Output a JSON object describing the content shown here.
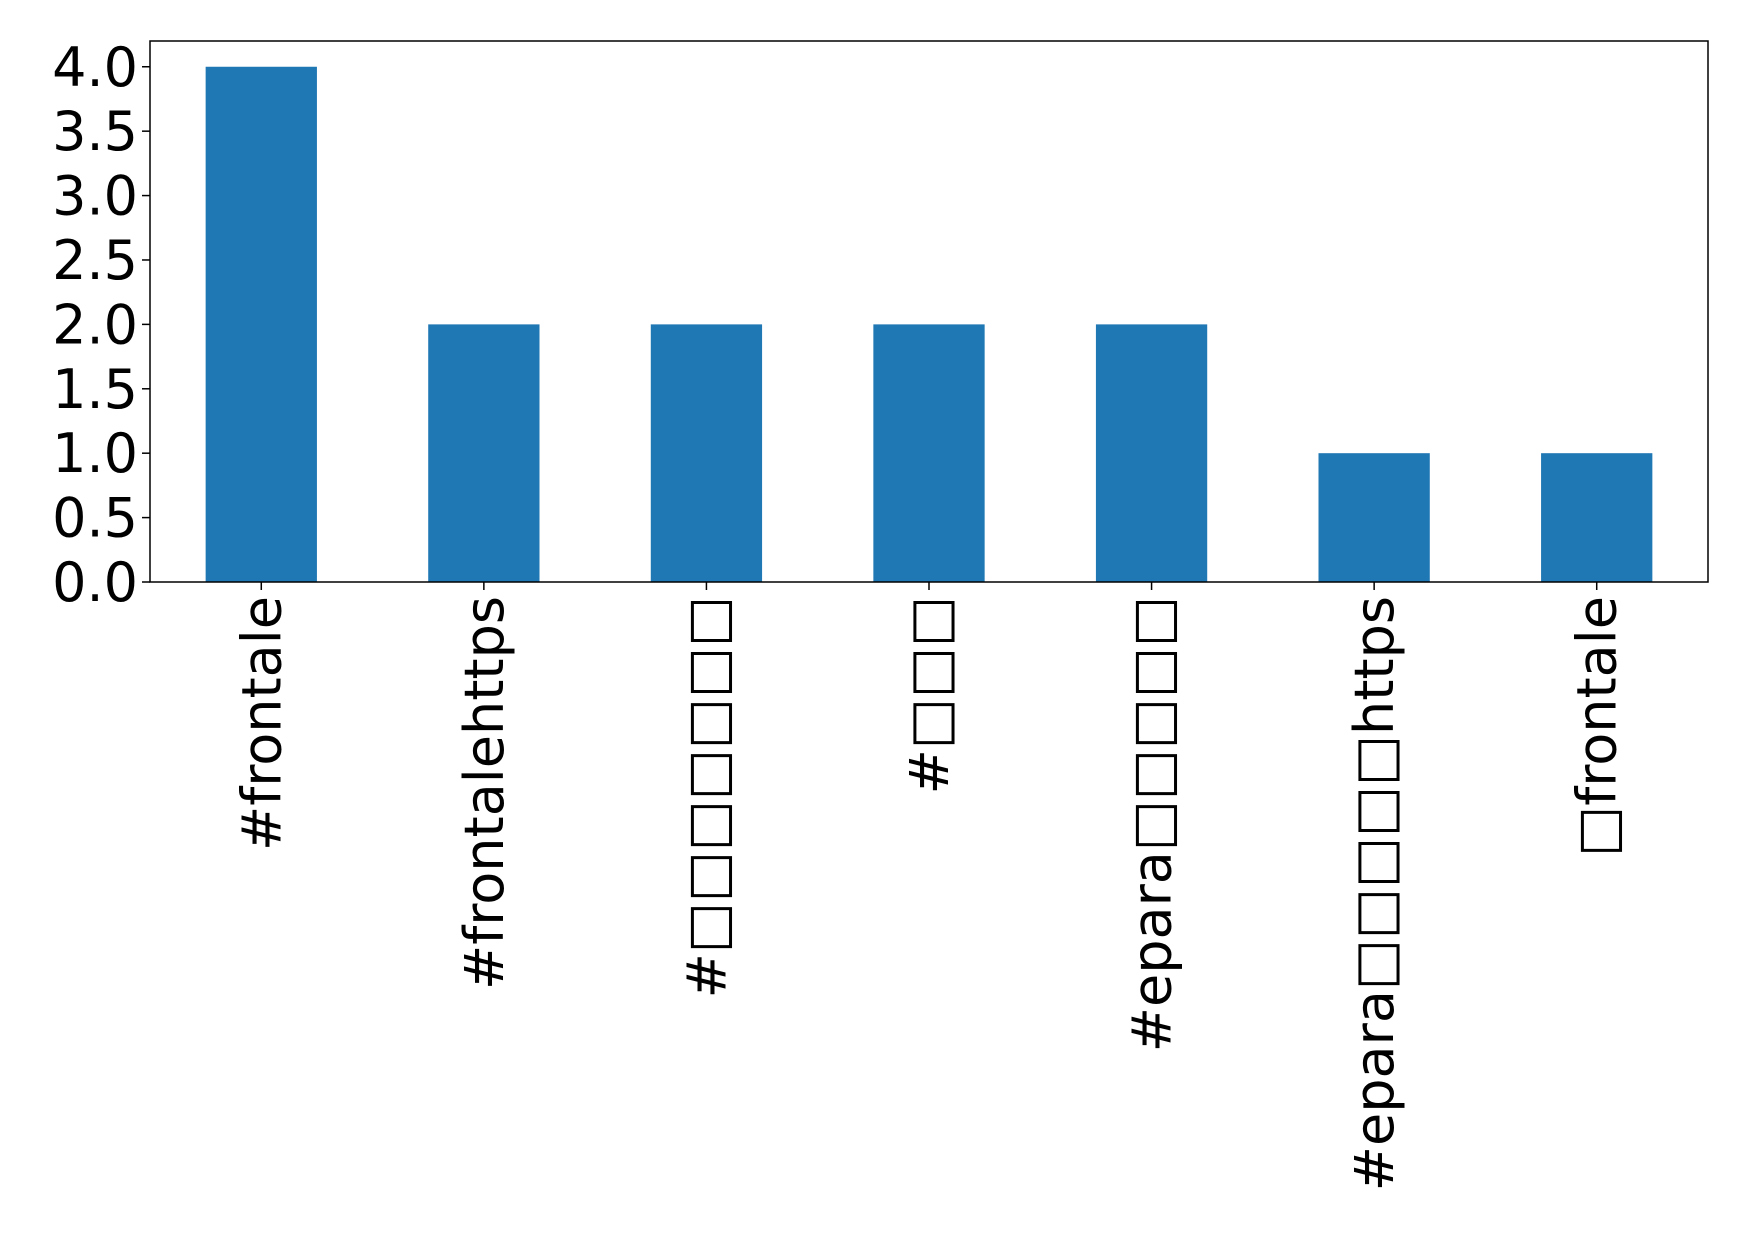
{
  "chart_data": {
    "type": "bar",
    "categories": [
      "#frontale",
      "#frontalehttps",
      "#□□□□□□□",
      "#□□□",
      "#epara□□□□□",
      "#epara□□□□□https",
      "□frontale"
    ],
    "values": [
      4,
      2,
      2,
      2,
      2,
      1,
      1
    ],
    "color": "#1f77b4",
    "ylim": [
      0,
      4.2
    ],
    "yticks": [
      {
        "value": 0,
        "label": "0.0"
      },
      {
        "value": 0.5,
        "label": "0.5"
      },
      {
        "value": 1,
        "label": "1.0"
      },
      {
        "value": 1.5,
        "label": "1.5"
      },
      {
        "value": 2,
        "label": "2.0"
      },
      {
        "value": 2.5,
        "label": "2.5"
      },
      {
        "value": 3,
        "label": "3.0"
      },
      {
        "value": 3.5,
        "label": "3.5"
      },
      {
        "value": 4,
        "label": "4.0"
      }
    ],
    "grid": false
  }
}
